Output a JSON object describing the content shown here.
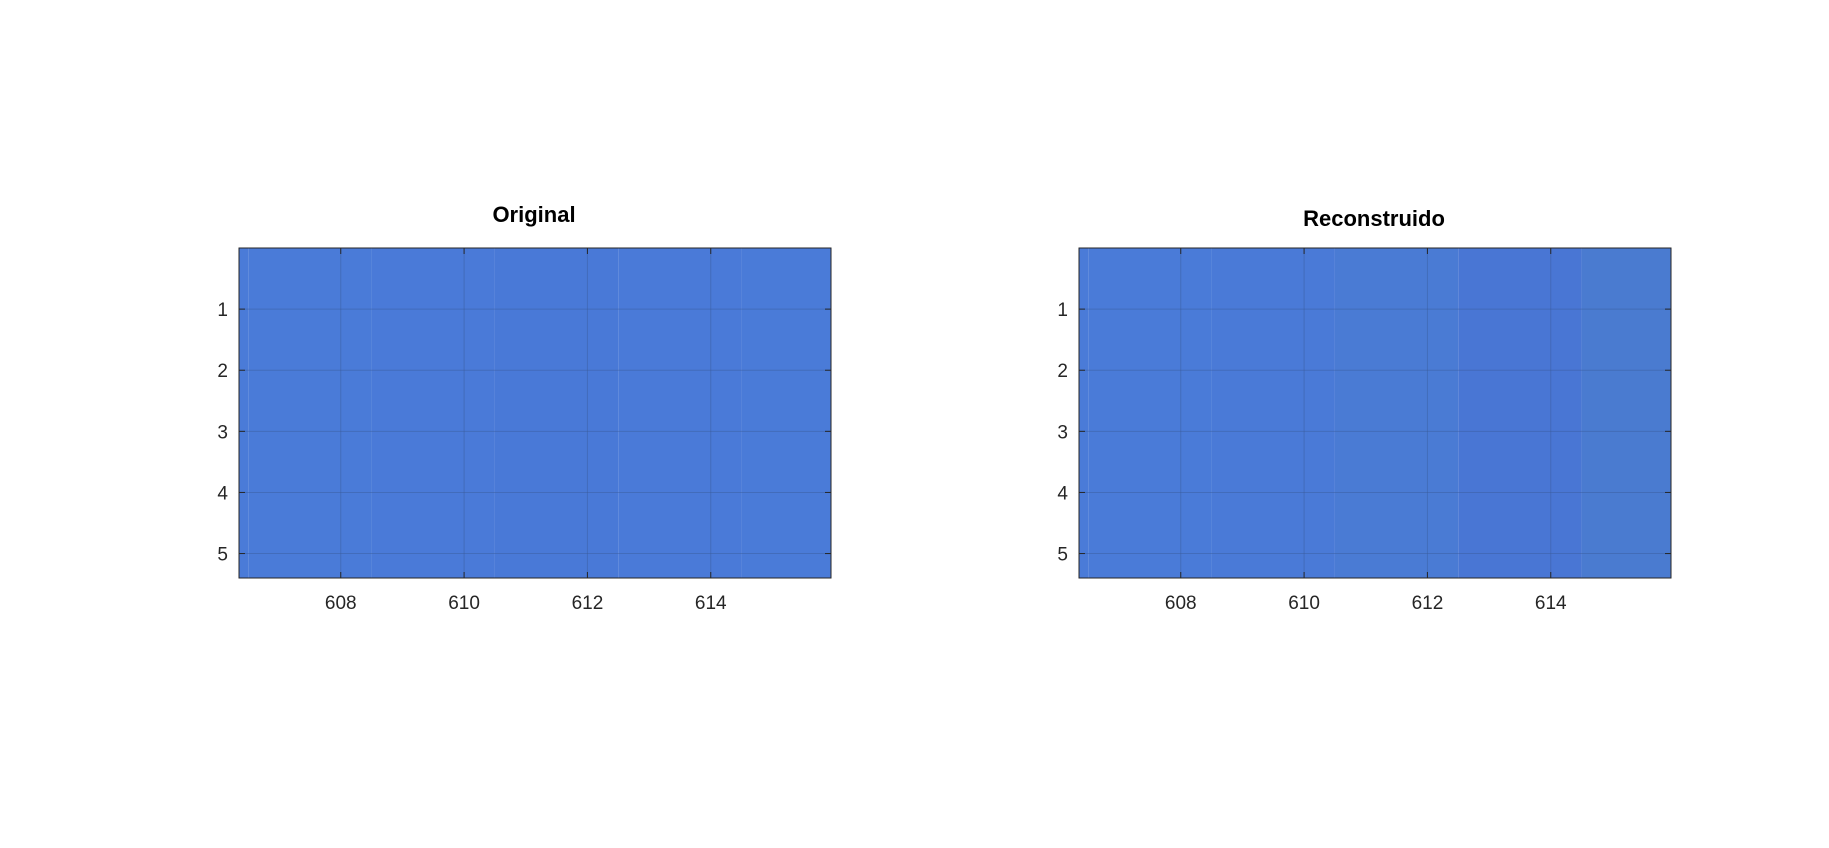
{
  "chart_data": [
    {
      "type": "heatmap",
      "title": "Original",
      "x_ticks": [
        608,
        610,
        612,
        614
      ],
      "y_ticks": [
        1,
        2,
        3,
        4,
        5
      ],
      "xlim": [
        606.35,
        615.95
      ],
      "ylim": [
        0.0,
        5.4
      ],
      "grid": true,
      "x_columns": [
        606.5,
        608.5,
        610.5,
        612.5,
        614.5
      ],
      "cell_colors": [
        "#4a7bd8",
        "#4a7ad8",
        "#4979d7",
        "#4a7ad8",
        "#4a7bd8"
      ]
    },
    {
      "type": "heatmap",
      "title": "Reconstruido",
      "x_ticks": [
        608,
        610,
        612,
        614
      ],
      "y_ticks": [
        1,
        2,
        3,
        4,
        5
      ],
      "xlim": [
        606.35,
        615.95
      ],
      "ylim": [
        0.0,
        5.4
      ],
      "grid": true,
      "x_columns": [
        606.5,
        608.5,
        610.5,
        612.5,
        614.5
      ],
      "cell_colors": [
        "#4a7bd8",
        "#4a7ad7",
        "#4a7bd4",
        "#4976d4",
        "#4a7bd0"
      ]
    }
  ],
  "colors": {
    "grid": "#3a5a9a",
    "axis": "#262626"
  }
}
